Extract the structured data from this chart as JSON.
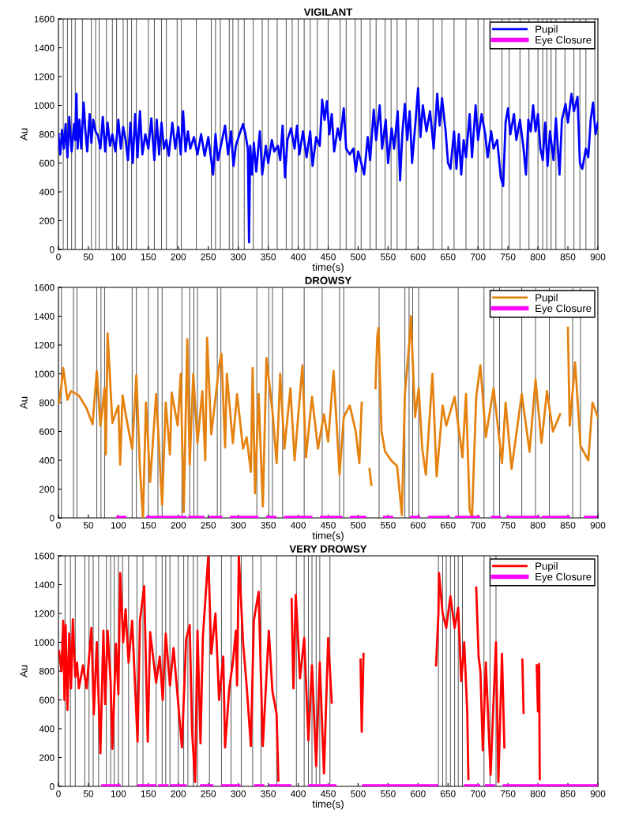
{
  "chart_data": [
    {
      "type": "line",
      "title": "VIGILANT",
      "xlabel": "time(s)",
      "ylabel": "Au",
      "xlim": [
        0,
        900
      ],
      "ylim": [
        0,
        1600
      ],
      "xticks": [
        0,
        50,
        100,
        150,
        200,
        250,
        300,
        350,
        400,
        450,
        500,
        550,
        600,
        650,
        700,
        750,
        800,
        850,
        900
      ],
      "yticks": [
        0,
        200,
        400,
        600,
        800,
        1000,
        1200,
        1400,
        1600
      ],
      "legend": "top right",
      "series": [
        {
          "name": "Pupil",
          "color": "#0000ff",
          "x": [
            0,
            3,
            6,
            9,
            12,
            15,
            18,
            22,
            26,
            28,
            30,
            32,
            35,
            38,
            42,
            45,
            48,
            52,
            55,
            58,
            62,
            66,
            70,
            74,
            78,
            82,
            86,
            90,
            95,
            100,
            104,
            108,
            112,
            116,
            120,
            124,
            128,
            132,
            136,
            140,
            145,
            150,
            155,
            160,
            164,
            168,
            172,
            176,
            180,
            184,
            190,
            195,
            200,
            204,
            208,
            212,
            216,
            220,
            226,
            232,
            238,
            244,
            250,
            255,
            258,
            262,
            266,
            272,
            278,
            283,
            288,
            292,
            296,
            302,
            308,
            312,
            316,
            318,
            320,
            323,
            326,
            330,
            336,
            340,
            346,
            350,
            356,
            360,
            366,
            370,
            374,
            378,
            382,
            388,
            394,
            398,
            402,
            408,
            414,
            420,
            424,
            430,
            436,
            440,
            444,
            448,
            452,
            456,
            460,
            466,
            470,
            476,
            480,
            486,
            492,
            496,
            500,
            504,
            510,
            516,
            520,
            526,
            530,
            536,
            540,
            546,
            550,
            556,
            560,
            566,
            570,
            574,
            578,
            582,
            586,
            590,
            596,
            600,
            604,
            608,
            614,
            620,
            626,
            632,
            636,
            640,
            646,
            650,
            654,
            660,
            664,
            668,
            672,
            676,
            680,
            686,
            690,
            696,
            700,
            706,
            712,
            716,
            722,
            726,
            732,
            738,
            742,
            746,
            750,
            754,
            760,
            764,
            770,
            776,
            780,
            784,
            788,
            792,
            796,
            800,
            804,
            808,
            812,
            816,
            820,
            826,
            830,
            836,
            840,
            846,
            850,
            856,
            860,
            866,
            870,
            874,
            880,
            884,
            888,
            892,
            896,
            900
          ],
          "values": [
            800,
            660,
            830,
            700,
            870,
            640,
            920,
            680,
            870,
            760,
            1080,
            700,
            900,
            700,
            1020,
            820,
            680,
            940,
            740,
            900,
            820,
            790,
            700,
            920,
            680,
            880,
            720,
            800,
            680,
            900,
            700,
            850,
            760,
            620,
            880,
            600,
            940,
            640,
            960,
            660,
            800,
            700,
            910,
            620,
            900,
            660,
            880,
            700,
            760,
            650,
            880,
            700,
            850,
            660,
            960,
            680,
            820,
            700,
            780,
            660,
            800,
            650,
            780,
            620,
            520,
            800,
            620,
            740,
            860,
            660,
            820,
            580,
            720,
            800,
            870,
            800,
            700,
            50,
            720,
            520,
            740,
            540,
            820,
            520,
            720,
            600,
            760,
            680,
            720,
            620,
            860,
            500,
            760,
            840,
            700,
            860,
            660,
            820,
            640,
            820,
            580,
            780,
            720,
            1040,
            900,
            1030,
            800,
            940,
            680,
            840,
            760,
            980,
            700,
            660,
            700,
            540,
            680,
            620,
            520,
            780,
            620,
            970,
            760,
            1000,
            700,
            900,
            600,
            840,
            700,
            960,
            480,
            820,
            1010,
            760,
            960,
            600,
            900,
            1120,
            780,
            1000,
            820,
            960,
            700,
            1080,
            860,
            1050,
            820,
            600,
            560,
            820,
            560,
            800,
            520,
            760,
            640,
            940,
            640,
            1000,
            760,
            940,
            800,
            640,
            820,
            700,
            760,
            500,
            440,
            880,
            980,
            800,
            940,
            760,
            900,
            700,
            520,
            900,
            820,
            1000,
            820,
            940,
            700,
            620,
            880,
            580,
            820,
            620,
            910,
            520,
            900,
            1010,
            880,
            1080,
            960,
            1060,
            600,
            560,
            700,
            640,
            900,
            1020,
            800,
            880
          ]
        },
        {
          "name": "Eye Closure",
          "color": "#ff00ff"
        }
      ],
      "ref_lines": [
        {
          "axis": "x",
          "value": 8
        },
        {
          "axis": "x",
          "value": 15
        },
        {
          "axis": "x",
          "value": 22
        },
        {
          "axis": "x",
          "value": 28
        },
        {
          "axis": "x",
          "value": 40
        },
        {
          "axis": "x",
          "value": 55
        },
        {
          "axis": "x",
          "value": 62
        },
        {
          "axis": "x",
          "value": 68
        },
        {
          "axis": "x",
          "value": 80
        },
        {
          "axis": "x",
          "value": 90
        },
        {
          "axis": "x",
          "value": 97
        },
        {
          "axis": "x",
          "value": 108
        },
        {
          "axis": "x",
          "value": 115
        },
        {
          "axis": "x",
          "value": 122
        },
        {
          "axis": "x",
          "value": 130
        },
        {
          "axis": "x",
          "value": 150
        },
        {
          "axis": "x",
          "value": 160
        },
        {
          "axis": "x",
          "value": 172
        },
        {
          "axis": "x",
          "value": 180
        },
        {
          "axis": "x",
          "value": 198
        },
        {
          "axis": "x",
          "value": 205
        },
        {
          "axis": "x",
          "value": 230
        },
        {
          "axis": "x",
          "value": 255
        },
        {
          "axis": "x",
          "value": 262
        },
        {
          "axis": "x",
          "value": 270
        },
        {
          "axis": "x",
          "value": 285
        },
        {
          "axis": "x",
          "value": 291
        },
        {
          "axis": "x",
          "value": 300
        },
        {
          "axis": "x",
          "value": 310
        },
        {
          "axis": "x",
          "value": 325
        },
        {
          "axis": "x",
          "value": 340
        },
        {
          "axis": "x",
          "value": 350
        },
        {
          "axis": "x",
          "value": 365
        },
        {
          "axis": "x",
          "value": 380
        },
        {
          "axis": "x",
          "value": 390
        },
        {
          "axis": "x",
          "value": 400
        },
        {
          "axis": "x",
          "value": 410
        },
        {
          "axis": "x",
          "value": 420
        },
        {
          "axis": "x",
          "value": 432
        },
        {
          "axis": "x",
          "value": 450
        },
        {
          "axis": "x",
          "value": 470
        },
        {
          "axis": "x",
          "value": 480
        },
        {
          "axis": "x",
          "value": 495
        },
        {
          "axis": "x",
          "value": 505
        },
        {
          "axis": "x",
          "value": 520
        },
        {
          "axis": "x",
          "value": 530
        },
        {
          "axis": "x",
          "value": 545
        },
        {
          "axis": "x",
          "value": 555
        },
        {
          "axis": "x",
          "value": 565
        },
        {
          "axis": "x",
          "value": 580
        },
        {
          "axis": "x",
          "value": 600
        },
        {
          "axis": "x",
          "value": 625
        },
        {
          "axis": "x",
          "value": 640
        },
        {
          "axis": "x",
          "value": 660
        },
        {
          "axis": "x",
          "value": 680
        },
        {
          "axis": "x",
          "value": 700
        },
        {
          "axis": "x",
          "value": 710
        },
        {
          "axis": "x",
          "value": 720
        },
        {
          "axis": "x",
          "value": 740
        },
        {
          "axis": "x",
          "value": 752
        },
        {
          "axis": "x",
          "value": 770
        },
        {
          "axis": "x",
          "value": 785
        },
        {
          "axis": "x",
          "value": 800
        },
        {
          "axis": "x",
          "value": 808
        },
        {
          "axis": "x",
          "value": 815
        },
        {
          "axis": "x",
          "value": 822
        },
        {
          "axis": "x",
          "value": 830
        },
        {
          "axis": "x",
          "value": 845
        },
        {
          "axis": "x",
          "value": 860
        },
        {
          "axis": "x",
          "value": 870
        },
        {
          "axis": "x",
          "value": 880
        },
        {
          "axis": "x",
          "value": 895
        }
      ]
    },
    {
      "type": "line",
      "title": "DROWSY",
      "xlabel": "time(s)",
      "ylabel": "Au",
      "xlim": [
        0,
        900
      ],
      "ylim": [
        0,
        1600
      ],
      "xticks": [
        0,
        50,
        100,
        150,
        200,
        250,
        300,
        350,
        400,
        450,
        500,
        550,
        600,
        650,
        700,
        750,
        800,
        850,
        900
      ],
      "yticks": [
        0,
        200,
        400,
        600,
        800,
        1000,
        1200,
        1400,
        1600
      ],
      "legend": "top right",
      "series": [
        {
          "name": "Pupil",
          "color": "#e5820f",
          "x": [
            1,
            5,
            8,
            15,
            21,
            34,
            47,
            57,
            64,
            70,
            77,
            79,
            82,
            90,
            100,
            103,
            107,
            113,
            123,
            130,
            136,
            141,
            146,
            153,
            163,
            173,
            179,
            186,
            189,
            199,
            204,
            209,
            215,
            219,
            225,
            232,
            240,
            245,
            248,
            255,
            268,
            272,
            278,
            281,
            291,
            298,
            308,
            314,
            321,
            324,
            328,
            334,
            341,
            347,
            357,
            364,
            370,
            377,
            387,
            394,
            407,
            413,
            423,
            433,
            443,
            450,
            459,
            469,
            476,
            486,
            496,
            502,
            506,
            514,
            519,
            522,
            526,
            529,
            532,
            534,
            539,
            545,
            555,
            565,
            573,
            578,
            585,
            588,
            595,
            601,
            607,
            613,
            624,
            631,
            641,
            647,
            661,
            674,
            680,
            686,
            690,
            697,
            704,
            713,
            726,
            740,
            746,
            756,
            773,
            786,
            796,
            806,
            815,
            825,
            837,
            843,
            850,
            853,
            862,
            871,
            884,
            891,
            900
          ],
          "values": [
            800,
            920,
            1040,
            820,
            880,
            850,
            760,
            650,
            1020,
            640,
            900,
            440,
            1280,
            660,
            780,
            370,
            850,
            700,
            480,
            990,
            340,
            0,
            800,
            250,
            860,
            90,
            800,
            440,
            870,
            640,
            1000,
            40,
            1240,
            370,
            1000,
            520,
            880,
            400,
            1250,
            580,
            1050,
            1140,
            490,
            1000,
            520,
            860,
            480,
            560,
            320,
            1040,
            170,
            860,
            80,
            1110,
            740,
            380,
            1000,
            480,
            900,
            400,
            1060,
            420,
            840,
            480,
            720,
            530,
            1020,
            300,
            700,
            780,
            600,
            380,
            800,
            null,
            340,
            230,
            null,
            900,
            1260,
            1320,
            600,
            460,
            400,
            360,
            20,
            860,
            1200,
            1400,
            700,
            900,
            480,
            300,
            1000,
            290,
            780,
            640,
            840,
            420,
            860,
            60,
            0,
            840,
            1060,
            560,
            900,
            380,
            800,
            340,
            860,
            460,
            960,
            520,
            880,
            600,
            720,
            null,
            1320,
            640,
            1080,
            500,
            400,
            800,
            700
          ]
        },
        {
          "name": "Eye Closure",
          "color": "#ff00ff",
          "x": [
            100,
            110,
            130,
            150,
            210,
            215,
            220,
            240,
            248,
            255,
            270,
            280,
            290,
            330,
            340,
            350,
            360,
            370,
            380,
            420,
            430,
            440,
            470,
            480,
            490,
            510,
            528,
            545,
            555,
            572,
            590,
            600,
            610,
            620,
            650,
            658,
            665,
            700,
            712,
            725,
            735,
            742,
            750,
            800,
            805,
            810,
            850,
            865,
            880,
            895
          ],
          "values": [
            0,
            0,
            null,
            0,
            0,
            null,
            0,
            0,
            null,
            0,
            0,
            null,
            0,
            0,
            null,
            0,
            0,
            null,
            0,
            0,
            null,
            0,
            0,
            null,
            0,
            0,
            null,
            0,
            0,
            null,
            0,
            0,
            null,
            0,
            0,
            null,
            0,
            0,
            null,
            0,
            0,
            null,
            0,
            0,
            null,
            0,
            0,
            null,
            0,
            0
          ]
        }
      ],
      "ref_lines": [
        {
          "axis": "x",
          "value": 5
        },
        {
          "axis": "x",
          "value": 25
        },
        {
          "axis": "x",
          "value": 31
        },
        {
          "axis": "x",
          "value": 64
        },
        {
          "axis": "x",
          "value": 71
        },
        {
          "axis": "x",
          "value": 77
        },
        {
          "axis": "x",
          "value": 123
        },
        {
          "axis": "x",
          "value": 130
        },
        {
          "axis": "x",
          "value": 150
        },
        {
          "axis": "x",
          "value": 166
        },
        {
          "axis": "x",
          "value": 173
        },
        {
          "axis": "x",
          "value": 206
        },
        {
          "axis": "x",
          "value": 219
        },
        {
          "axis": "x",
          "value": 226
        },
        {
          "axis": "x",
          "value": 232
        },
        {
          "axis": "x",
          "value": 265
        },
        {
          "axis": "x",
          "value": 271
        },
        {
          "axis": "x",
          "value": 331
        },
        {
          "axis": "x",
          "value": 351
        },
        {
          "axis": "x",
          "value": 357
        },
        {
          "axis": "x",
          "value": 374
        },
        {
          "axis": "x",
          "value": 410
        },
        {
          "axis": "x",
          "value": 440
        },
        {
          "axis": "x",
          "value": 469
        },
        {
          "axis": "x",
          "value": 476
        },
        {
          "axis": "x",
          "value": 535
        },
        {
          "axis": "x",
          "value": 578
        },
        {
          "axis": "x",
          "value": 585
        },
        {
          "axis": "x",
          "value": 591
        },
        {
          "axis": "x",
          "value": 601
        },
        {
          "axis": "x",
          "value": 667
        },
        {
          "axis": "x",
          "value": 710
        },
        {
          "axis": "x",
          "value": 726
        },
        {
          "axis": "x",
          "value": 736
        },
        {
          "axis": "x",
          "value": 773
        },
        {
          "axis": "x",
          "value": 796
        },
        {
          "axis": "x",
          "value": 819
        },
        {
          "axis": "x",
          "value": 858
        },
        {
          "axis": "x",
          "value": 871
        }
      ]
    },
    {
      "type": "line",
      "title": "VERY DROWSY",
      "xlabel": "time(s)",
      "ylabel": "Au",
      "xlim": [
        0,
        900
      ],
      "ylim": [
        0,
        1600
      ],
      "xticks": [
        0,
        50,
        100,
        150,
        200,
        250,
        300,
        350,
        400,
        450,
        500,
        550,
        600,
        650,
        700,
        750,
        800,
        850,
        900
      ],
      "yticks": [
        0,
        200,
        400,
        600,
        800,
        1000,
        1200,
        1400,
        1600
      ],
      "legend": "top right",
      "series": [
        {
          "name": "Pupil",
          "color": "#ff0000",
          "x": [
            1,
            5,
            8,
            10,
            12,
            15,
            18,
            21,
            24,
            28,
            31,
            34,
            41,
            47,
            55,
            59,
            64,
            70,
            75,
            78,
            82,
            87,
            90,
            96,
            100,
            103,
            108,
            112,
            117,
            123,
            132,
            136,
            143,
            149,
            153,
            163,
            169,
            174,
            179,
            186,
            192,
            206,
            213,
            219,
            223,
            228,
            232,
            237,
            241,
            250,
            255,
            262,
            268,
            275,
            278,
            285,
            291,
            296,
            298,
            301,
            308,
            314,
            321,
            326,
            334,
            341,
            351,
            357,
            364,
            367,
            380,
            389,
            392,
            396,
            403,
            410,
            417,
            423,
            430,
            436,
            443,
            450,
            456,
            480,
            504,
            506,
            509,
            570,
            630,
            634,
            635,
            641,
            647,
            654,
            661,
            667,
            672,
            677,
            682,
            684,
            690,
            697,
            701,
            704,
            708,
            713,
            721,
            725,
            730,
            734,
            740,
            744,
            760,
            774,
            776,
            790,
            798,
            800,
            802,
            803
          ],
          "values": [
            940,
            800,
            1150,
            600,
            1120,
            530,
            1060,
            680,
            1160,
            760,
            860,
            680,
            840,
            680,
            1100,
            500,
            1000,
            230,
            1080,
            570,
            1080,
            730,
            260,
            990,
            640,
            1480,
            1000,
            1230,
            860,
            1150,
            310,
            1150,
            1390,
            310,
            1070,
            720,
            900,
            600,
            1060,
            700,
            960,
            270,
            1020,
            1120,
            380,
            30,
            1080,
            300,
            1040,
            1600,
            920,
            1200,
            600,
            900,
            270,
            680,
            860,
            1080,
            700,
            1600,
            1000,
            700,
            280,
            1150,
            1350,
            280,
            1080,
            660,
            500,
            40,
            null,
            1300,
            680,
            1330,
            750,
            1030,
            320,
            840,
            140,
            860,
            90,
            1030,
            580,
            null,
            880,
            380,
            920,
            null,
            840,
            1200,
            1480,
            1200,
            1100,
            1320,
            1100,
            1240,
            730,
            1000,
            520,
            50,
            null,
            1380,
            900,
            800,
            250,
            860,
            80,
            500,
            1000,
            30,
            920,
            270,
            null,
            880,
            510,
            null,
            840,
            520,
            850,
            50
          ]
        },
        {
          "name": "Eye Closure",
          "color": "#ff00ff",
          "x": [
            75,
            100,
            118,
            135,
            160,
            165,
            170,
            180,
            185,
            190,
            210,
            225,
            240,
            255,
            265,
            275,
            300,
            315,
            330,
            340,
            348,
            355,
            385,
            402,
            420,
            460,
            485,
            510,
            630,
            655,
            680,
            700,
            707,
            715,
            725,
            735,
            745,
            900
          ],
          "values": [
            0,
            0,
            null,
            0,
            0,
            null,
            0,
            0,
            null,
            0,
            0,
            null,
            0,
            0,
            null,
            0,
            0,
            null,
            0,
            0,
            null,
            0,
            0,
            null,
            0,
            0,
            null,
            0,
            0,
            null,
            0,
            0,
            null,
            0,
            0,
            null,
            0,
            0
          ]
        }
      ],
      "ref_lines": [
        {
          "axis": "x",
          "value": 11
        },
        {
          "axis": "x",
          "value": 20
        },
        {
          "axis": "x",
          "value": 28
        },
        {
          "axis": "x",
          "value": 44
        },
        {
          "axis": "x",
          "value": 51
        },
        {
          "axis": "x",
          "value": 58
        },
        {
          "axis": "x",
          "value": 67
        },
        {
          "axis": "x",
          "value": 80
        },
        {
          "axis": "x",
          "value": 87
        },
        {
          "axis": "x",
          "value": 93
        },
        {
          "axis": "x",
          "value": 100
        },
        {
          "axis": "x",
          "value": 107
        },
        {
          "axis": "x",
          "value": 117
        },
        {
          "axis": "x",
          "value": 131
        },
        {
          "axis": "x",
          "value": 141
        },
        {
          "axis": "x",
          "value": 163
        },
        {
          "axis": "x",
          "value": 173
        },
        {
          "axis": "x",
          "value": 179
        },
        {
          "axis": "x",
          "value": 186
        },
        {
          "axis": "x",
          "value": 200
        },
        {
          "axis": "x",
          "value": 209
        },
        {
          "axis": "x",
          "value": 216
        },
        {
          "axis": "x",
          "value": 225
        },
        {
          "axis": "x",
          "value": 232
        },
        {
          "axis": "x",
          "value": 252
        },
        {
          "axis": "x",
          "value": 272
        },
        {
          "axis": "x",
          "value": 288
        },
        {
          "axis": "x",
          "value": 305
        },
        {
          "axis": "x",
          "value": 324
        },
        {
          "axis": "x",
          "value": 338
        },
        {
          "axis": "x",
          "value": 364
        },
        {
          "axis": "x",
          "value": 397
        },
        {
          "axis": "x",
          "value": 410
        },
        {
          "axis": "x",
          "value": 417
        },
        {
          "axis": "x",
          "value": 423
        },
        {
          "axis": "x",
          "value": 430
        },
        {
          "axis": "x",
          "value": 436
        },
        {
          "axis": "x",
          "value": 453
        },
        {
          "axis": "x",
          "value": 634
        },
        {
          "axis": "x",
          "value": 641
        },
        {
          "axis": "x",
          "value": 647
        },
        {
          "axis": "x",
          "value": 654
        },
        {
          "axis": "x",
          "value": 661
        },
        {
          "axis": "x",
          "value": 667
        },
        {
          "axis": "x",
          "value": 674
        },
        {
          "axis": "x",
          "value": 710
        },
        {
          "axis": "x",
          "value": 720
        },
        {
          "axis": "x",
          "value": 730
        }
      ]
    }
  ]
}
